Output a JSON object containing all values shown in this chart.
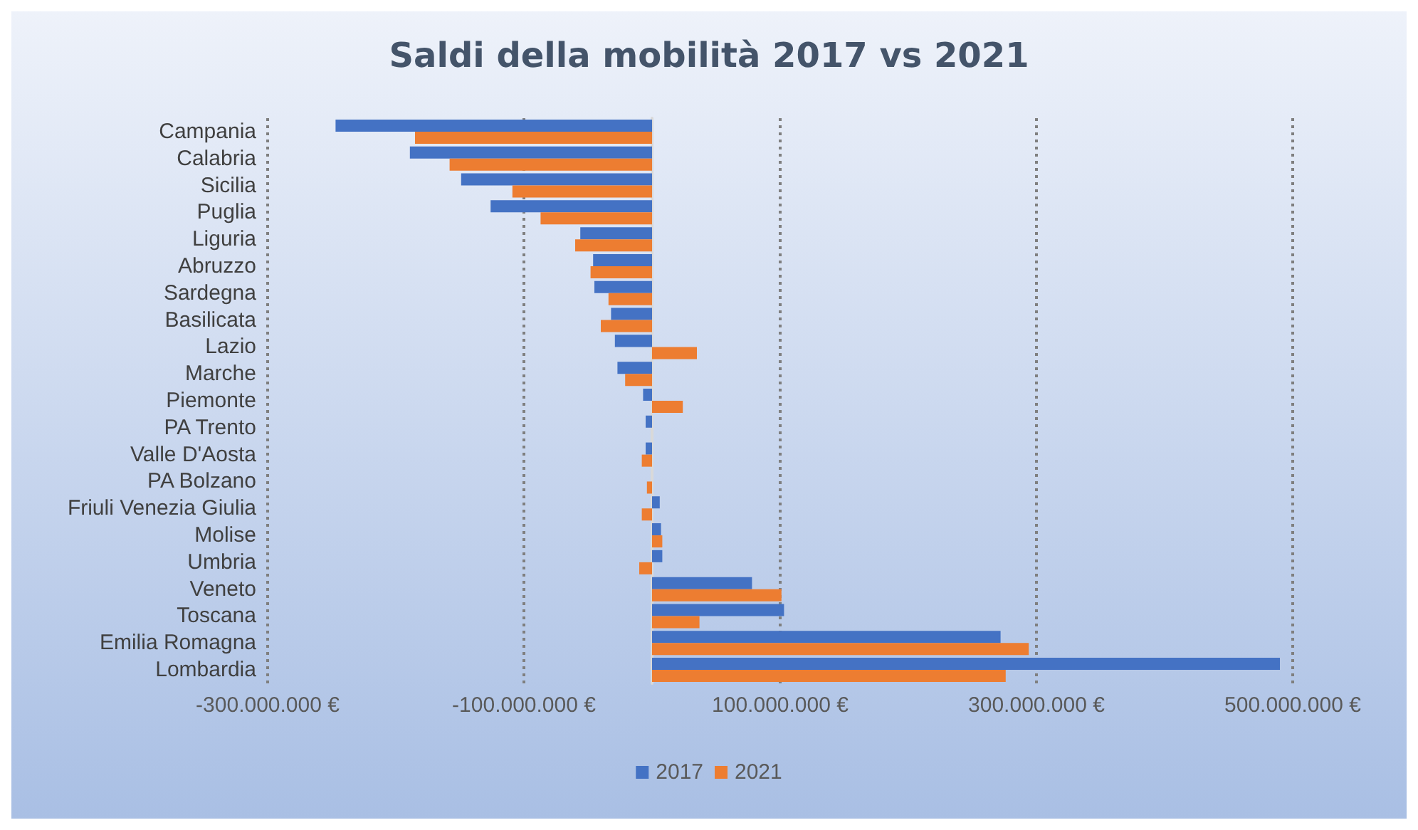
{
  "chart_data": {
    "type": "bar",
    "orientation": "horizontal",
    "title": "Saldi della mobilità 2017 vs 2021",
    "categories": [
      "Campania",
      "Calabria",
      "Sicilia",
      "Puglia",
      "Liguria",
      "Abruzzo",
      "Sardegna",
      "Basilicata",
      "Lazio",
      "Marche",
      "Piemonte",
      "PA Trento",
      "Valle D'Aosta",
      "PA Bolzano",
      "Friuli Venezia Giulia",
      "Molise",
      "Umbria",
      "Veneto",
      "Toscana",
      "Emilia Romagna",
      "Lombardia"
    ],
    "series": [
      {
        "name": "2017",
        "color": "#4472c4",
        "values": [
          -247000000,
          -189000000,
          -149000000,
          -126000000,
          -56000000,
          -46000000,
          -45000000,
          -32000000,
          -29000000,
          -27000000,
          -7000000,
          -5000000,
          -5000000,
          0,
          6000000,
          7000000,
          8000000,
          78000000,
          103000000,
          272000000,
          490000000
        ]
      },
      {
        "name": "2021",
        "color": "#ed7d31",
        "values": [
          -185000000,
          -158000000,
          -109000000,
          -87000000,
          -60000000,
          -48000000,
          -34000000,
          -40000000,
          35000000,
          -21000000,
          24000000,
          0,
          -8000000,
          -4000000,
          -8000000,
          8000000,
          -10000000,
          101000000,
          37000000,
          294000000,
          276000000
        ]
      }
    ],
    "xlim": [
      -300000000,
      500000000
    ],
    "xticks": [
      {
        "value": -300000000,
        "label": "-300.000.000 €"
      },
      {
        "value": -100000000,
        "label": "-100.000.000 €"
      },
      {
        "value": 100000000,
        "label": "100.000.000 €"
      },
      {
        "value": 300000000,
        "label": "300.000.000 €"
      },
      {
        "value": 500000000,
        "label": "500.000.000 €"
      }
    ],
    "grid": "x",
    "legend": "bottom"
  }
}
